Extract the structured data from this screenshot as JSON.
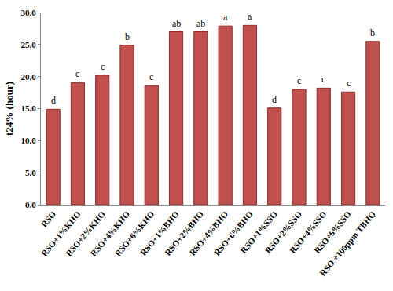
{
  "chart_data": {
    "type": "bar",
    "y_label": "t24% (hour)",
    "categories": [
      "RSO",
      "RSO+1%KHO",
      "RSO+2%KHO",
      "RSO+4%KHO",
      "RSO+6%KHO",
      "RSO+1%BHO",
      "RSO+2%BHO",
      "RSO+4%BHO",
      "RSO+6%BHO",
      "RSO+1%SSO",
      "RSO+2%SSO",
      "RSO+4%SSO",
      "RSO+6%SSO",
      "RSO +100ppm TBHQ"
    ],
    "values": [
      14.9,
      19.1,
      20.2,
      24.9,
      18.6,
      27.0,
      27.0,
      27.9,
      28.0,
      15.1,
      18.0,
      18.2,
      17.6,
      25.5
    ],
    "annotations": [
      "d",
      "c",
      "c",
      "b",
      "c",
      "ab",
      "ab",
      "a",
      "a",
      "d",
      "c",
      "c",
      "c",
      "b"
    ],
    "color": "#c0504d",
    "ylim": [
      0,
      30
    ],
    "yticks": [
      {
        "value": 0,
        "label": "0.0"
      },
      {
        "value": 5,
        "label": "5.0"
      },
      {
        "value": 10,
        "label": "10.0"
      },
      {
        "value": 15,
        "label": "15.0"
      },
      {
        "value": 20,
        "label": "20.0"
      },
      {
        "value": 25,
        "label": "25.0"
      },
      {
        "value": 30,
        "label": "30.0"
      }
    ],
    "grid": false
  }
}
